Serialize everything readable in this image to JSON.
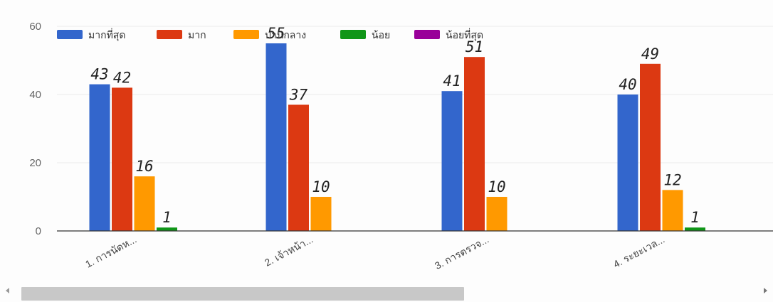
{
  "chart_data": {
    "type": "bar",
    "title": "",
    "xlabel": "",
    "ylabel": "",
    "ylim": [
      0,
      60
    ],
    "yticks": [
      "0",
      "20",
      "40",
      "60"
    ],
    "grid": true,
    "legend_position": "top",
    "categories": [
      "1. การนัดห...",
      "2. เจ้าหน้า...",
      "3. การตรวจ...",
      "4. ระยะเวล..."
    ],
    "series": [
      {
        "name": "มากที่สุด",
        "color": "#3366cc",
        "values": [
          43,
          55,
          41,
          40
        ]
      },
      {
        "name": "มาก",
        "color": "#dc3912",
        "values": [
          42,
          37,
          51,
          49
        ]
      },
      {
        "name": "ปานกลาง",
        "color": "#ff9900",
        "values": [
          16,
          10,
          10,
          12
        ]
      },
      {
        "name": "น้อย",
        "color": "#109618",
        "values": [
          1,
          0,
          0,
          1
        ]
      },
      {
        "name": "น้อยที่สุด",
        "color": "#990099",
        "values": [
          0,
          0,
          0,
          0
        ]
      }
    ],
    "data_labels": [
      [
        "43",
        "55",
        "41",
        "40"
      ],
      [
        "42",
        "37",
        "51",
        "49"
      ],
      [
        "16",
        "10",
        "10",
        "12"
      ],
      [
        "1",
        "",
        "",
        "1"
      ],
      [
        "",
        "",
        "",
        ""
      ]
    ]
  },
  "scrollbar": {
    "thumb_fraction": 0.58
  }
}
